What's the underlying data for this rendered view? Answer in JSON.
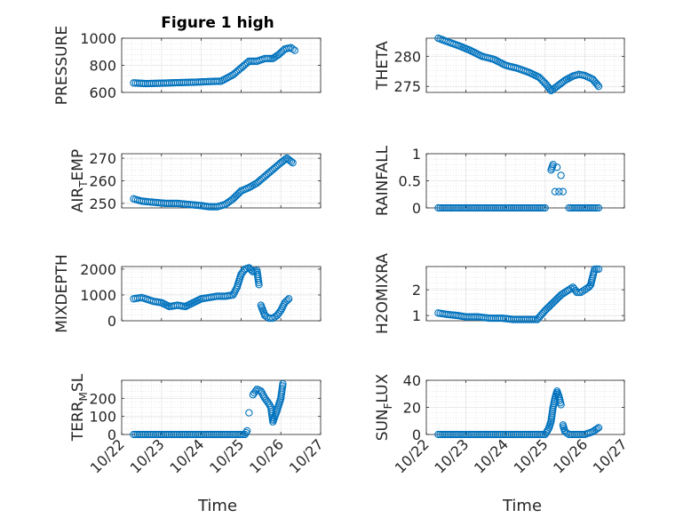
{
  "figure": {
    "title": "Figure 1 high",
    "x_label": "Time"
  },
  "chart_data": [
    {
      "type": "scatter",
      "name": "pressure",
      "ylabel": "PRESSURE",
      "ylim": [
        600,
        1000
      ],
      "yticks": [
        600,
        800,
        1000
      ],
      "ytick_labels": [
        "600",
        "800",
        "1000"
      ],
      "xlim": [
        0,
        5
      ],
      "xticks": [
        0,
        1,
        2,
        3,
        4,
        5
      ],
      "xtick_labels": [],
      "x": [
        0.3,
        0.6,
        1.0,
        1.4,
        1.8,
        2.2,
        2.5,
        2.8,
        3.0,
        3.2,
        3.4,
        3.6,
        3.8,
        3.95,
        4.1,
        4.25,
        4.35
      ],
      "y": [
        670,
        665,
        668,
        672,
        675,
        680,
        683,
        730,
        780,
        830,
        830,
        850,
        850,
        880,
        920,
        930,
        910
      ]
    },
    {
      "type": "scatter",
      "name": "theta",
      "ylabel": "THETA",
      "ylim": [
        274,
        283
      ],
      "yticks": [
        275,
        280
      ],
      "ytick_labels": [
        "275",
        "280"
      ],
      "xlim": [
        0,
        5
      ],
      "xticks": [
        0,
        1,
        2,
        3,
        4,
        5
      ],
      "xtick_labels": [],
      "x": [
        0.3,
        0.5,
        0.8,
        1.1,
        1.4,
        1.7,
        2.0,
        2.3,
        2.6,
        2.85,
        3.0,
        3.15,
        3.3,
        3.5,
        3.7,
        3.85,
        4.0,
        4.2,
        4.35
      ],
      "y": [
        283,
        282.5,
        281.8,
        281,
        280,
        279.5,
        278.5,
        278,
        277.3,
        276.5,
        275.5,
        274.3,
        275,
        276,
        276.7,
        277,
        276.8,
        276.2,
        275
      ]
    },
    {
      "type": "scatter",
      "name": "air_temp",
      "ylabel": "AIR_TEMP",
      "ylim": [
        248,
        272
      ],
      "yticks": [
        250,
        260,
        270
      ],
      "ytick_labels": [
        "250",
        "260",
        "270"
      ],
      "xlim": [
        0,
        5
      ],
      "xticks": [
        0,
        1,
        2,
        3,
        4,
        5
      ],
      "xtick_labels": [],
      "x": [
        0.3,
        0.5,
        0.8,
        1.1,
        1.4,
        1.7,
        2.0,
        2.2,
        2.4,
        2.6,
        2.8,
        3.0,
        3.2,
        3.4,
        3.6,
        3.8,
        4.0,
        4.15,
        4.3
      ],
      "y": [
        252,
        251,
        250.5,
        250,
        250,
        249.5,
        249,
        248.5,
        248.5,
        249.5,
        252,
        255.5,
        257,
        259,
        262,
        265,
        268,
        270,
        268
      ]
    },
    {
      "type": "scatter",
      "name": "rainfall",
      "ylabel": "RAINFALL",
      "ylim": [
        0,
        1
      ],
      "yticks": [
        0,
        0.5,
        1
      ],
      "ytick_labels": [
        "0",
        "0.5",
        "1"
      ],
      "xlim": [
        0,
        5
      ],
      "xticks": [
        0,
        1,
        2,
        3,
        4,
        5
      ],
      "xtick_labels": [],
      "x": [
        0.3,
        0.6,
        1.0,
        1.4,
        1.8,
        2.2,
        2.6,
        3.0,
        3.15,
        3.2,
        3.25,
        3.3,
        3.35,
        3.4,
        3.45,
        3.6,
        3.8,
        4.0,
        4.2,
        4.35
      ],
      "y": [
        0,
        0,
        0,
        0,
        0,
        0,
        0,
        0,
        0.7,
        0.8,
        0.3,
        0.75,
        0.3,
        0.6,
        0.3,
        0,
        0,
        0,
        0,
        0
      ]
    },
    {
      "type": "scatter",
      "name": "mixdepth",
      "ylabel": "MIXDEPTH",
      "ylim": [
        0,
        2100
      ],
      "yticks": [
        0,
        1000,
        2000
      ],
      "ytick_labels": [
        "0",
        "1000",
        "2000"
      ],
      "xlim": [
        0,
        5
      ],
      "xticks": [
        0,
        1,
        2,
        3,
        4,
        5
      ],
      "xtick_labels": [],
      "x": [
        0.3,
        0.5,
        0.8,
        1.0,
        1.2,
        1.4,
        1.6,
        1.8,
        2.0,
        2.2,
        2.4,
        2.6,
        2.8,
        2.9,
        3.0,
        3.1,
        3.2,
        3.3,
        3.4,
        3.45,
        3.5,
        3.6,
        3.7,
        3.8,
        3.9,
        4.0,
        4.1,
        4.2
      ],
      "y": [
        850,
        900,
        750,
        700,
        550,
        600,
        550,
        700,
        850,
        900,
        950,
        950,
        1000,
        1300,
        1800,
        2000,
        2050,
        1900,
        1950,
        1400,
        600,
        200,
        100,
        100,
        200,
        400,
        700,
        850
      ]
    },
    {
      "type": "scatter",
      "name": "h2omixra",
      "ylabel": "H2OMIXRA",
      "ylim": [
        0.8,
        2.9
      ],
      "yticks": [
        1,
        2
      ],
      "ytick_labels": [
        "1",
        "2"
      ],
      "xlim": [
        0,
        5
      ],
      "xticks": [
        0,
        1,
        2,
        3,
        4,
        5
      ],
      "xtick_labels": [],
      "x": [
        0.3,
        0.5,
        0.8,
        1.0,
        1.3,
        1.6,
        1.9,
        2.2,
        2.5,
        2.8,
        3.0,
        3.2,
        3.4,
        3.6,
        3.7,
        3.8,
        3.9,
        4.0,
        4.1,
        4.15,
        4.25,
        4.35
      ],
      "y": [
        1.1,
        1.05,
        1.0,
        0.95,
        0.95,
        0.9,
        0.9,
        0.85,
        0.85,
        0.85,
        1.2,
        1.5,
        1.8,
        2.0,
        2.1,
        1.9,
        1.9,
        2.0,
        2.1,
        2.2,
        2.8,
        2.8
      ]
    },
    {
      "type": "scatter",
      "name": "terr_msl",
      "ylabel": "TERR_MSL",
      "ylim": [
        0,
        300
      ],
      "yticks": [
        0,
        100,
        200
      ],
      "ytick_labels": [
        "0",
        "100",
        "200"
      ],
      "xlim": [
        0,
        5
      ],
      "xticks": [
        0,
        1,
        2,
        3,
        4,
        5
      ],
      "xtick_labels": [
        "10/22",
        "10/23",
        "10/24",
        "10/25",
        "10/26",
        "10/27"
      ],
      "x": [
        0.3,
        0.6,
        1.0,
        1.4,
        1.8,
        2.2,
        2.6,
        2.9,
        3.1,
        3.15,
        3.2,
        3.3,
        3.4,
        3.5,
        3.6,
        3.7,
        3.75,
        3.8,
        3.9,
        4.0,
        4.05
      ],
      "y": [
        0,
        0,
        0,
        0,
        0,
        0,
        0,
        0,
        0,
        20,
        120,
        220,
        250,
        240,
        200,
        170,
        150,
        70,
        130,
        200,
        280
      ]
    },
    {
      "type": "scatter",
      "name": "sun_flux",
      "ylabel": "SUN_FLUX",
      "ylim": [
        0,
        40
      ],
      "yticks": [
        0,
        20,
        40
      ],
      "ytick_labels": [
        "0",
        "20",
        "40"
      ],
      "xlim": [
        0,
        5
      ],
      "xticks": [
        0,
        1,
        2,
        3,
        4,
        5
      ],
      "xtick_labels": [
        "10/22",
        "10/23",
        "10/24",
        "10/25",
        "10/26",
        "10/27"
      ],
      "x": [
        0.3,
        0.6,
        1.0,
        1.4,
        1.8,
        2.2,
        2.6,
        3.0,
        3.1,
        3.15,
        3.2,
        3.25,
        3.3,
        3.35,
        3.4,
        3.45,
        3.5,
        3.6,
        3.8,
        4.0,
        4.2,
        4.35
      ],
      "y": [
        0,
        0,
        0,
        0,
        0,
        0,
        0,
        0,
        5,
        10,
        20,
        27,
        32,
        28,
        22,
        7,
        2,
        0,
        0,
        0,
        2,
        5
      ]
    }
  ]
}
